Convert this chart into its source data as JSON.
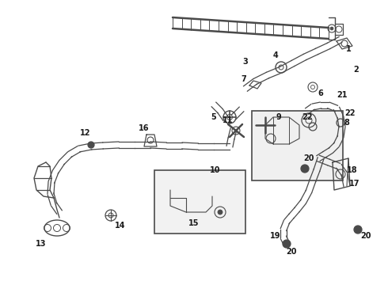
{
  "background": "#ffffff",
  "line_color": "#4a4a4a",
  "figsize": [
    4.9,
    3.6
  ],
  "dpi": 100,
  "label_fontsize": 7.0,
  "label_color": "#1a1a1a"
}
